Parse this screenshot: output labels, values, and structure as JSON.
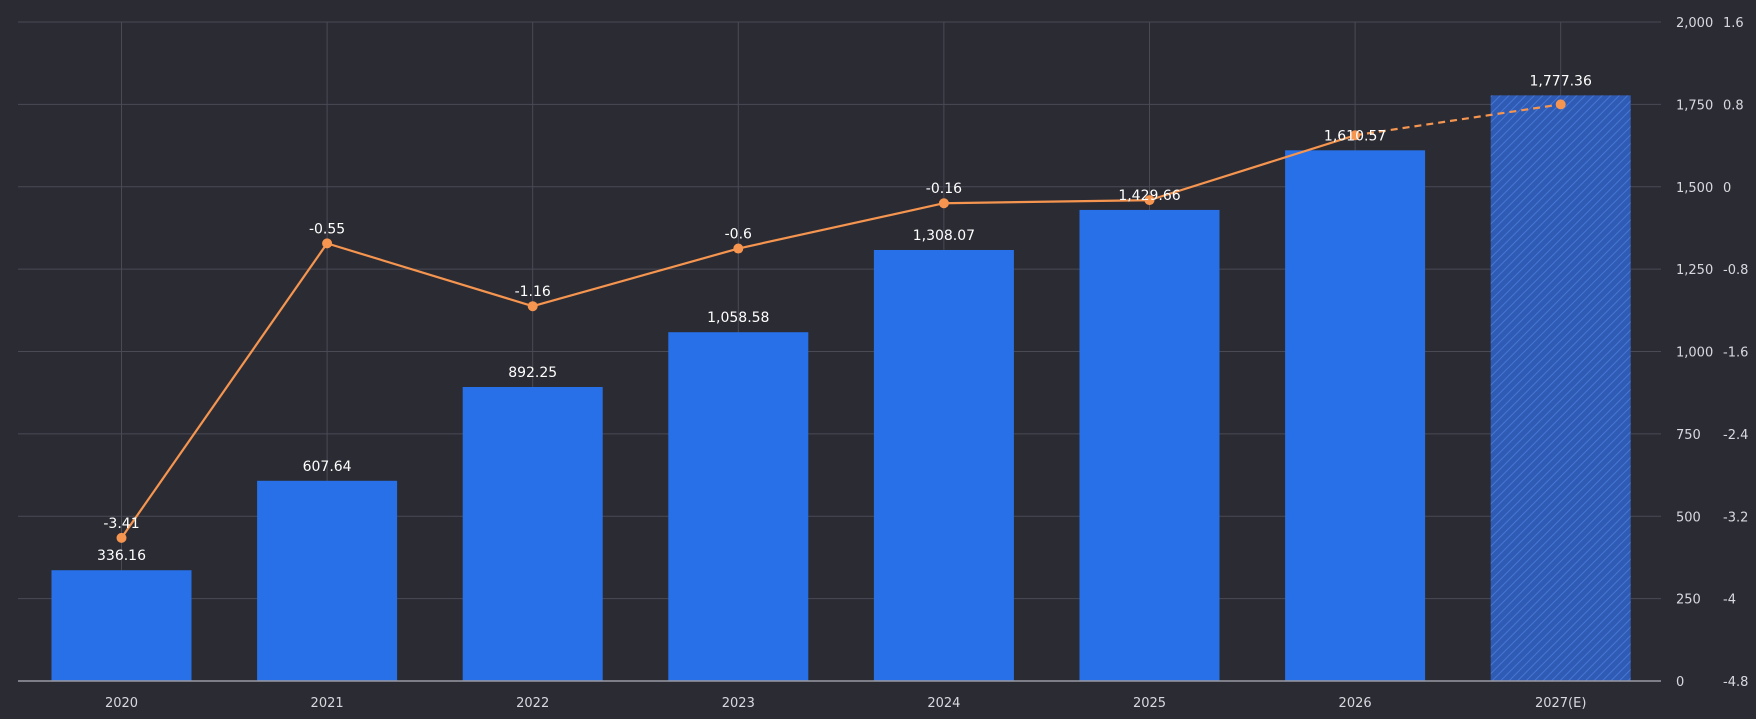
{
  "chart_data": {
    "type": "bar",
    "categories": [
      "2020",
      "2021",
      "2022",
      "2023",
      "2024",
      "2025",
      "2026",
      "2027(E)"
    ],
    "bar_values": [
      336.16,
      607.64,
      892.25,
      1058.58,
      1308.07,
      1429.66,
      1610.57,
      1777.36
    ],
    "bar_labels": [
      "336.16",
      "607.64",
      "892.25",
      "1,058.58",
      "1,308.07",
      "1,429.66",
      "1,610.57",
      "1,777.36"
    ],
    "line_values": [
      -3.41,
      -0.55,
      -1.16,
      -0.6,
      -0.16,
      -0.13,
      0.5,
      0.8
    ],
    "line_labels": [
      "-3.41",
      "-0.55",
      "-1.16",
      "-0.6",
      "-0.16",
      "",
      "",
      ""
    ],
    "estimated_index": 7,
    "left_axis": {
      "ylim": [
        0,
        2000
      ],
      "ticks": [
        0,
        250,
        500,
        750,
        1000,
        1250,
        1500,
        1750,
        2000
      ],
      "tick_labels": [
        "0",
        "250",
        "500",
        "750",
        "1,000",
        "1,250",
        "1,500",
        "1,750",
        "2,000"
      ]
    },
    "right_axis": {
      "ylim": [
        -4.8,
        1.6
      ],
      "ticks": [
        -4.8,
        -4,
        -3.2,
        -2.4,
        -1.6,
        -0.8,
        0,
        0.8,
        1.6
      ],
      "tick_labels": [
        "-4.8",
        "-4",
        "-3.2",
        "-2.4",
        "-1.6",
        "-0.8",
        "0",
        "0.8",
        "1.6"
      ]
    },
    "grid": true,
    "colors": {
      "background": "#2b2b34",
      "bar": "#2770e8",
      "bar_estimated_stripe": "#3560b8",
      "line": "#f5954f",
      "grid": "#4a4a55",
      "axis": "#9a9aa3"
    }
  }
}
